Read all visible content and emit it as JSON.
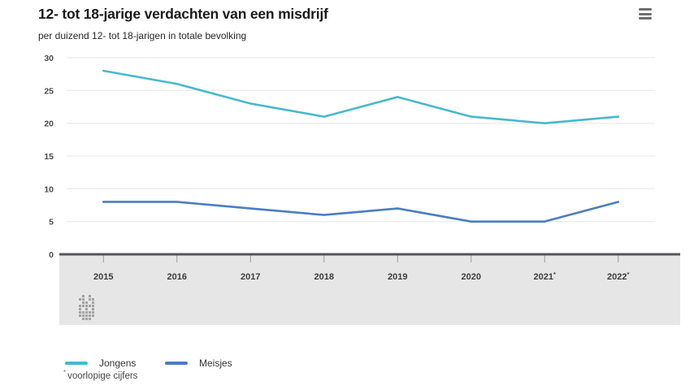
{
  "header": {
    "title": "12- tot 18-jarige verdachten van een misdrijf",
    "subtitle": "per duizend 12- tot 18-jarigen in totale bevolking"
  },
  "menu": {
    "icon": "hamburger-menu"
  },
  "chart_data": {
    "type": "line",
    "categories": [
      "2015",
      "2016",
      "2017",
      "2018",
      "2019",
      "2020",
      "2021",
      "2022"
    ],
    "provisional_years": [
      "2021",
      "2022"
    ],
    "provisional_marker": "*",
    "series": [
      {
        "name": "Jongens",
        "color": "#46b9cd",
        "values": [
          28,
          26,
          23,
          21,
          24,
          21,
          20,
          21
        ]
      },
      {
        "name": "Meisjes",
        "color": "#4b7dc3",
        "values": [
          8,
          8,
          7,
          6,
          7,
          5,
          5,
          8
        ]
      }
    ],
    "ylim": [
      0,
      30
    ],
    "yticks": [
      0,
      5,
      10,
      15,
      20,
      25,
      30
    ],
    "grid": true,
    "legend_position": "bottom",
    "axis_band_color": "#e6e6e6",
    "zero_line_color": "#55565a",
    "gridline_color": "#ededed"
  },
  "footnote": {
    "marker": "*",
    "text": "voorlopige cijfers"
  }
}
